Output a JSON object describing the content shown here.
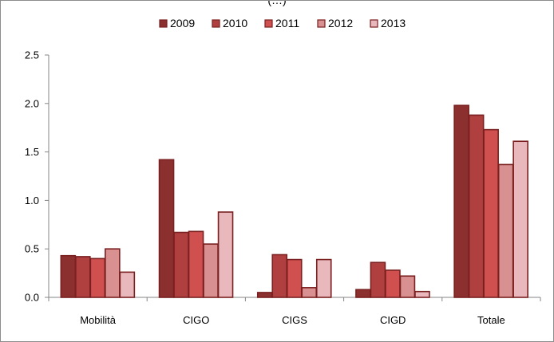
{
  "chart_data": {
    "type": "bar",
    "title": "(…)",
    "categories": [
      "Mobilità",
      "CIGO",
      "CIGS",
      "CIGD",
      "Totale"
    ],
    "series": [
      {
        "name": "2009",
        "color": "#8b2f2f",
        "values": [
          0.43,
          1.42,
          0.05,
          0.08,
          1.98
        ]
      },
      {
        "name": "2010",
        "color": "#b04040",
        "values": [
          0.42,
          0.67,
          0.44,
          0.36,
          1.88
        ]
      },
      {
        "name": "2011",
        "color": "#d05050",
        "values": [
          0.4,
          0.68,
          0.39,
          0.28,
          1.73
        ]
      },
      {
        "name": "2012",
        "color": "#d89090",
        "values": [
          0.5,
          0.55,
          0.1,
          0.22,
          1.37
        ]
      },
      {
        "name": "2013",
        "color": "#e8b8bc",
        "values": [
          0.26,
          0.88,
          0.39,
          0.06,
          1.61
        ]
      }
    ],
    "yticks": [
      "0.0",
      "0.5",
      "1.0",
      "1.5",
      "2.0",
      "2.5"
    ],
    "ylim": [
      0,
      2.5
    ],
    "bar_outline_color": "#7a2020",
    "grid": false,
    "legend_position": "top"
  }
}
